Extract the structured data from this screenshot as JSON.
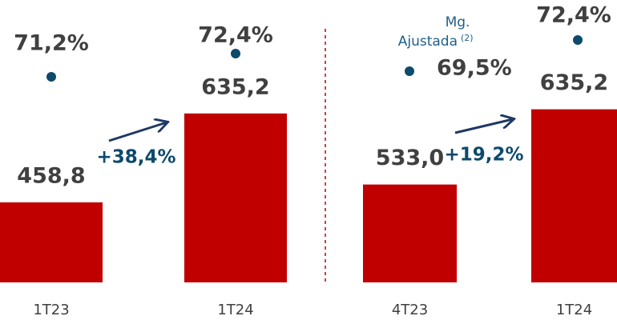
{
  "chart_data": [
    {
      "type": "bar",
      "categories": [
        "1T23",
        "1T24"
      ],
      "values": [
        458.8,
        635.2
      ],
      "value_labels": [
        "458,8",
        "635,2"
      ],
      "color": "#c00000",
      "ylim": [
        300,
        700
      ],
      "margin": {
        "values": [
          71.2,
          72.4
        ],
        "value_labels": [
          "71,2%",
          "72,4%"
        ],
        "color": "#0d4a6b"
      },
      "y2lim": [
        70,
        73
      ],
      "annotation": "+38,4%"
    },
    {
      "type": "bar",
      "categories": [
        "4T23",
        "1T24"
      ],
      "values": [
        533.0,
        635.2
      ],
      "value_labels": [
        "533,0",
        "635,2"
      ],
      "color": "#c00000",
      "ylim": [
        400,
        700
      ],
      "margin": {
        "legend": [
          "Mg.",
          "Ajustada"
        ],
        "legend_note": "(2)",
        "values": [
          69.5,
          72.4
        ],
        "value_labels": [
          "69,5%",
          "72,4%"
        ],
        "color": "#0d4a6b"
      },
      "y2lim": [
        69,
        73
      ],
      "annotation": "+19,2%"
    }
  ]
}
